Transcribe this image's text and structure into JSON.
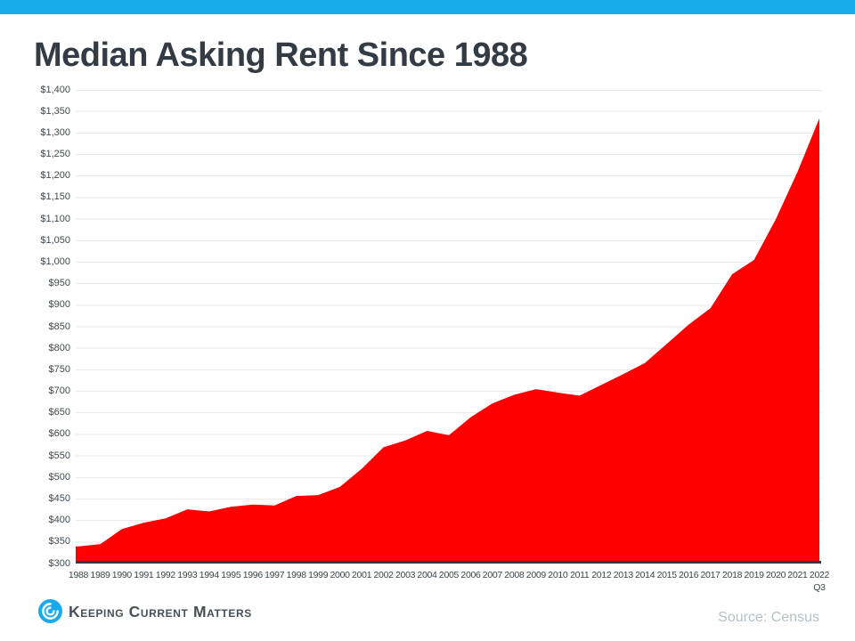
{
  "page": {
    "title": "Median Asking Rent Since 1988",
    "accent_color": "#19aaeb"
  },
  "chart_data": {
    "type": "area",
    "title": "Median Asking Rent Since 1988",
    "series_name": "Median Asking Rent (USD)",
    "x": [
      "1988",
      "1989",
      "1990",
      "1991",
      "1992",
      "1993",
      "1994",
      "1995",
      "1996",
      "1997",
      "1998",
      "1999",
      "2000",
      "2001",
      "2002",
      "2003",
      "2004",
      "2005",
      "2006",
      "2007",
      "2008",
      "2009",
      "2010",
      "2011",
      "2012",
      "2013",
      "2014",
      "2015",
      "2016",
      "2017",
      "2018",
      "2019",
      "2020",
      "2021",
      "2022"
    ],
    "x_sub_label": {
      "index": 34,
      "label": "Q3"
    },
    "values": [
      340,
      345,
      380,
      395,
      405,
      426,
      421,
      432,
      437,
      435,
      457,
      459,
      478,
      520,
      570,
      586,
      608,
      598,
      640,
      672,
      692,
      705,
      697,
      690,
      715,
      740,
      766,
      810,
      855,
      893,
      972,
      1005,
      1100,
      1210,
      1334
    ],
    "y_axis": {
      "min": 300,
      "max": 1400,
      "step": 50,
      "tick_prefix": "$"
    },
    "y_ticks": [
      "$1,400",
      "$1,350",
      "$1,300",
      "$1,250",
      "$1,200",
      "$1,150",
      "$1,100",
      "$1,050",
      "$1,000",
      "$950",
      "$900",
      "$850",
      "$800",
      "$750",
      "$700",
      "$650",
      "$600",
      "$550",
      "$500",
      "$450",
      "$400",
      "$350",
      "$300"
    ],
    "area_color": "#fe0000",
    "grid": true,
    "grid_color": "#e9e9e9",
    "axis_line_color": "#333b44",
    "legend_position": "none"
  },
  "footer": {
    "logo": {
      "icon": "kcm-swirl-icon",
      "text": "Keeping Current Matters",
      "color": "#19aaeb"
    },
    "source": "Source: Census"
  }
}
